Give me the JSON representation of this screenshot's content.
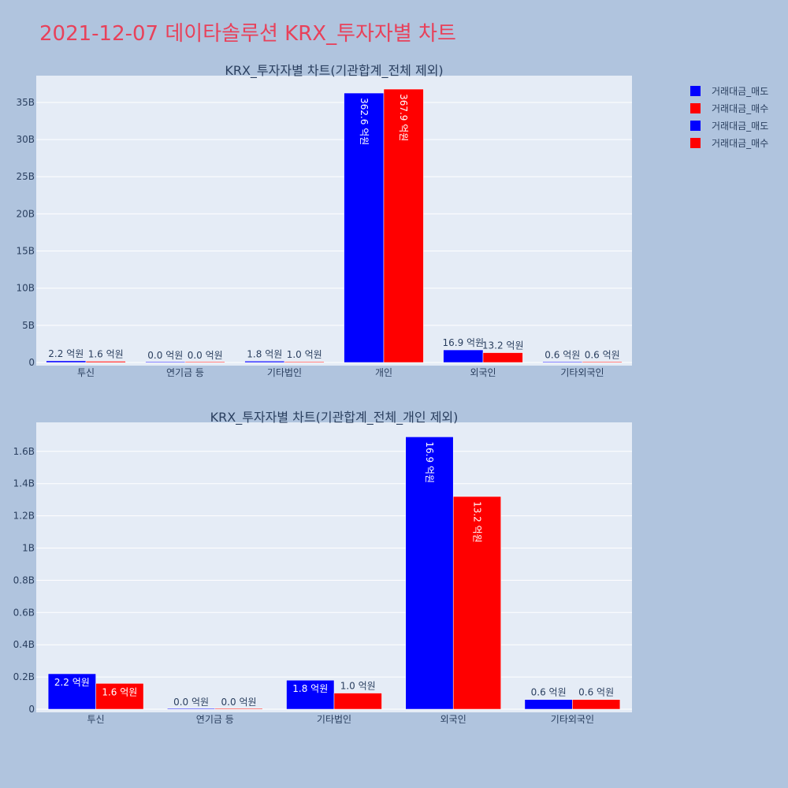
{
  "page_title": "2021-12-07 데이타솔루션 KRX_투자자별 차트",
  "colors": {
    "sell": "#0000ff",
    "buy": "#ff0000",
    "plot_bg": "#e5ecf6",
    "paper_bg": "#b0c4de",
    "title": "#e8415a"
  },
  "legend": [
    {
      "label": "거래대금_매도",
      "color": "#0000ff"
    },
    {
      "label": "거래대금_매수",
      "color": "#ff0000"
    },
    {
      "label": "거래대금_매도",
      "color": "#0000ff"
    },
    {
      "label": "거래대금_매수",
      "color": "#ff0000"
    }
  ],
  "chart_data": [
    {
      "type": "bar",
      "title": "KRX_투자자별 차트(기관합계_전체 제외)",
      "categories": [
        "투신",
        "연기금 등",
        "기타법인",
        "개인",
        "외국인",
        "기타외국인"
      ],
      "series": [
        {
          "name": "거래대금_매도",
          "values": [
            220000000,
            0,
            180000000,
            36260000000,
            1690000000,
            60000000
          ],
          "labels": [
            "2.2 억원",
            "0.0 억원",
            "1.8 억원",
            "362.6 억원",
            "16.9 억원",
            "0.6 억원"
          ]
        },
        {
          "name": "거래대금_매수",
          "values": [
            160000000,
            0,
            100000000,
            36790000000,
            1320000000,
            60000000
          ],
          "labels": [
            "1.6 억원",
            "0.0 억원",
            "1.0 억원",
            "367.9 억원",
            "13.2 억원",
            "0.6 억원"
          ]
        }
      ],
      "yticks": [
        "0",
        "5B",
        "10B",
        "15B",
        "20B",
        "25B",
        "30B",
        "35B"
      ],
      "ytick_values": [
        0,
        5000000000,
        10000000000,
        15000000000,
        20000000000,
        25000000000,
        30000000000,
        35000000000
      ],
      "ylim": [
        0,
        38600000000
      ],
      "grid": true
    },
    {
      "type": "bar",
      "title": "KRX_투자자별 차트(기관합계_전체_개인 제외)",
      "categories": [
        "투신",
        "연기금 등",
        "기타법인",
        "외국인",
        "기타외국인"
      ],
      "series": [
        {
          "name": "거래대금_매도",
          "values": [
            220000000,
            0,
            180000000,
            1690000000,
            60000000
          ],
          "labels": [
            "2.2 억원",
            "0.0 억원",
            "1.8 억원",
            "16.9 억원",
            "0.6 억원"
          ]
        },
        {
          "name": "거래대금_매수",
          "values": [
            160000000,
            0,
            100000000,
            1320000000,
            60000000
          ],
          "labels": [
            "1.6 억원",
            "0.0 억원",
            "1.0 억원",
            "13.2 억원",
            "0.6 억원"
          ]
        }
      ],
      "yticks": [
        "0",
        "0.2B",
        "0.4B",
        "0.6B",
        "0.8B",
        "1B",
        "1.2B",
        "1.4B",
        "1.6B"
      ],
      "ytick_values": [
        0,
        200000000,
        400000000,
        600000000,
        800000000,
        1000000000,
        1200000000,
        1400000000,
        1600000000
      ],
      "ylim": [
        0,
        1780000000
      ],
      "grid": true
    }
  ]
}
